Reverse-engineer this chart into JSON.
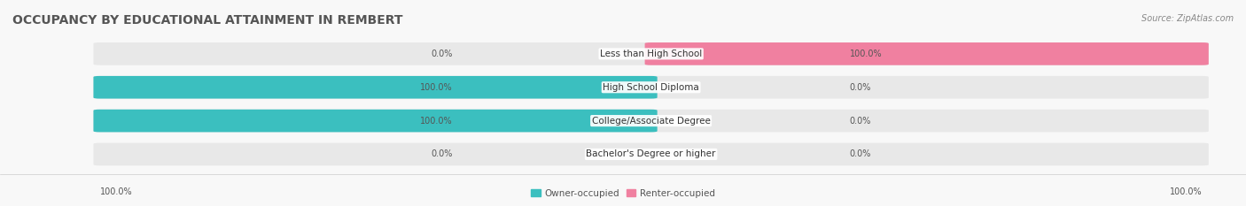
{
  "title": "OCCUPANCY BY EDUCATIONAL ATTAINMENT IN REMBERT",
  "source": "Source: ZipAtlas.com",
  "categories": [
    "Less than High School",
    "High School Diploma",
    "College/Associate Degree",
    "Bachelor's Degree or higher"
  ],
  "owner_pct": [
    0.0,
    100.0,
    100.0,
    0.0
  ],
  "renter_pct": [
    100.0,
    0.0,
    0.0,
    0.0
  ],
  "owner_color": "#3bbfbf",
  "renter_color": "#f080a0",
  "bar_bg_color": "#e8e8e8",
  "owner_label": "Owner-occupied",
  "renter_label": "Renter-occupied",
  "title_fontsize": 10,
  "label_fontsize": 7.5,
  "tick_fontsize": 7,
  "source_fontsize": 7,
  "legend_fontsize": 7.5,
  "bg_color": "#f8f8f8",
  "footer_left_owner": "100.0%",
  "footer_right_renter": "100.0%"
}
